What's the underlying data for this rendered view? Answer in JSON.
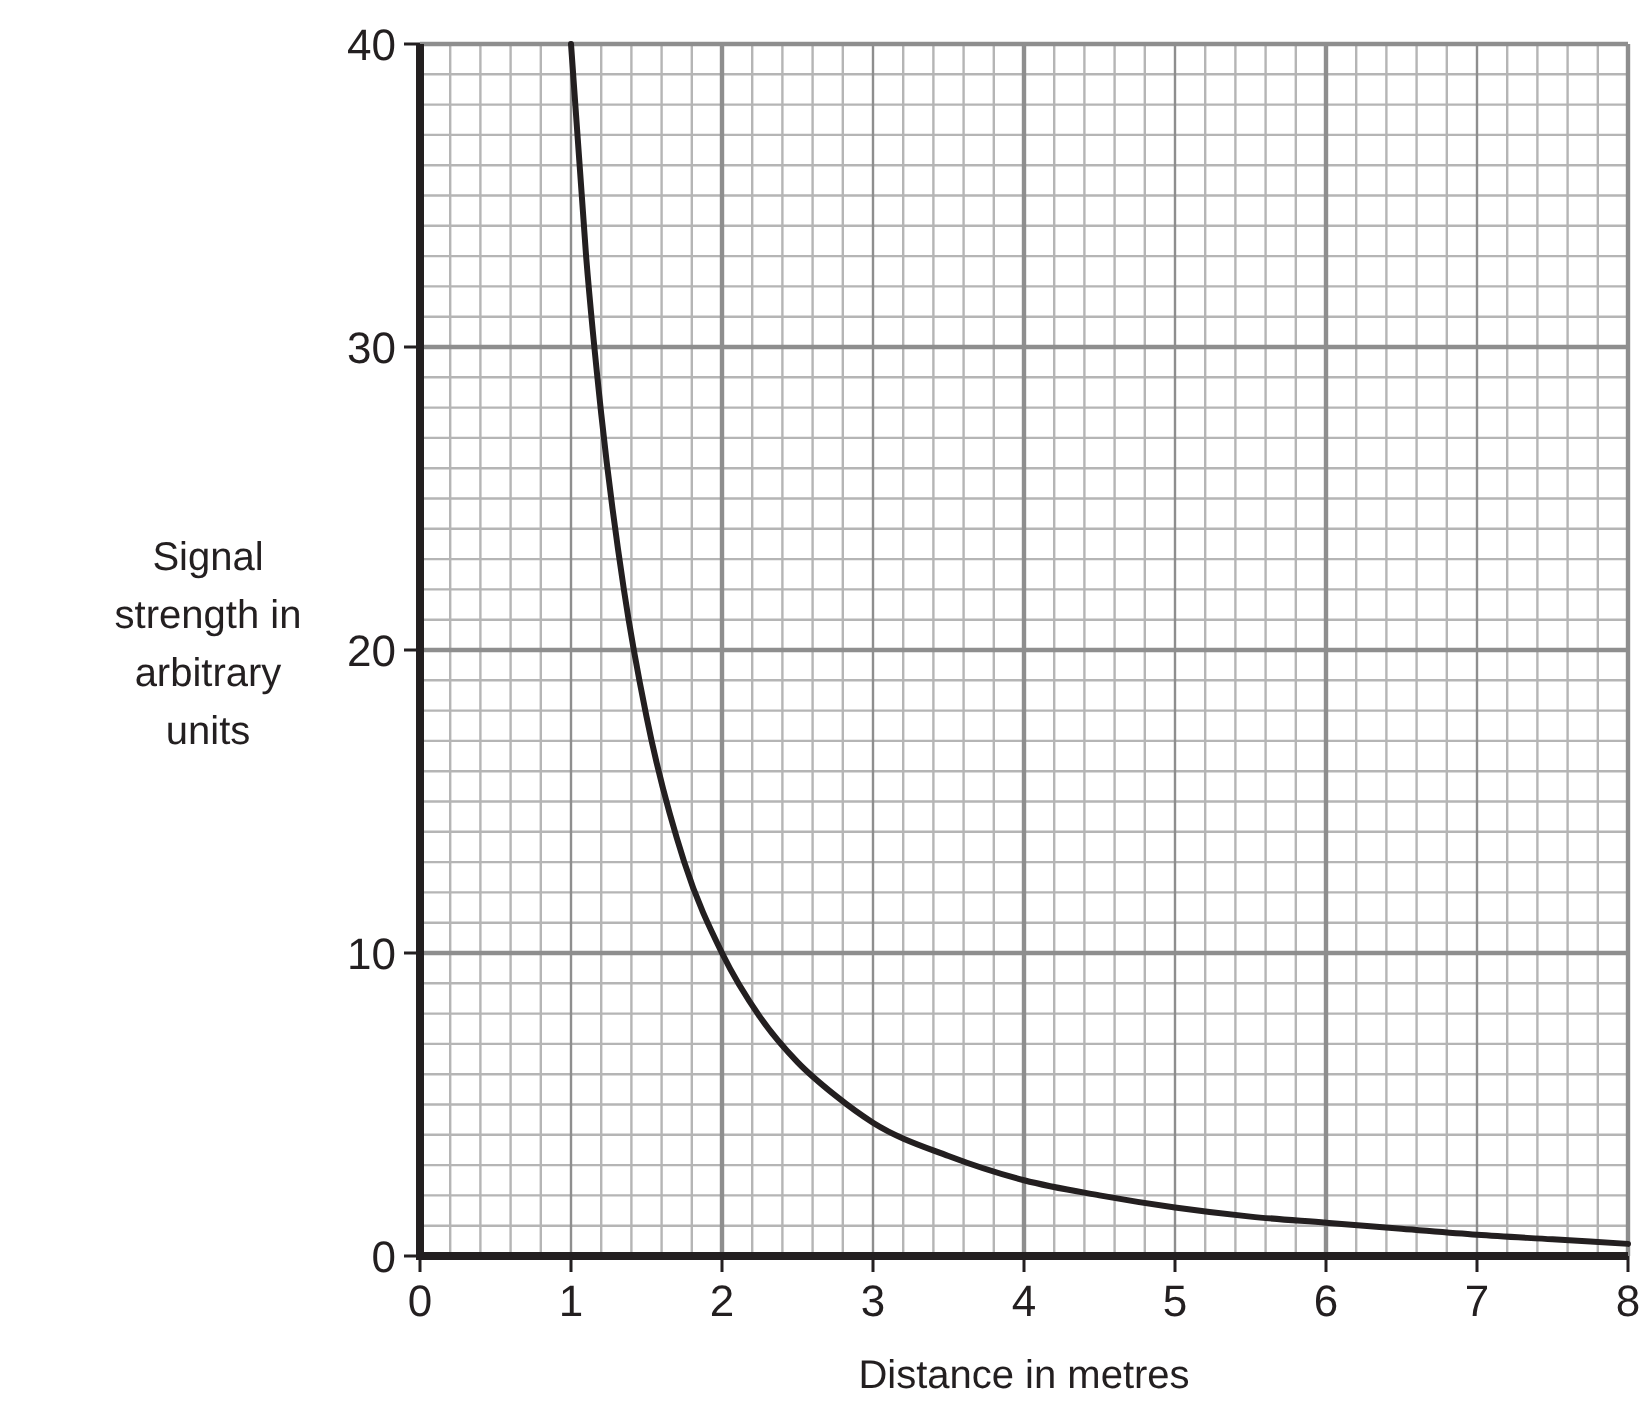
{
  "chart_data": {
    "type": "line",
    "xlabel": "Distance in metres",
    "ylabel": "Signal\nstrength in\narbitrary\nunits",
    "x": [
      1,
      1.1,
      1.2,
      1.35,
      1.5,
      1.75,
      2,
      2.25,
      2.5,
      2.75,
      3,
      3.5,
      4,
      4.5,
      5,
      5.5,
      6,
      6.5,
      7,
      7.5,
      8
    ],
    "series": [
      {
        "color": "#231f20",
        "values": [
          40,
          33,
          27.8,
          22,
          17.8,
          13,
          10,
          7.9,
          6.4,
          5.3,
          4.4,
          3.3,
          2.5,
          2,
          1.6,
          1.3,
          1.1,
          0.9,
          0.7,
          0.55,
          0.4
        ]
      }
    ],
    "xlim": [
      0,
      8
    ],
    "ylim": [
      0,
      40
    ],
    "xticks": [
      0,
      1,
      2,
      3,
      4,
      5,
      6,
      7,
      8
    ],
    "yticks": [
      0,
      10,
      20,
      30,
      40
    ],
    "grid": true,
    "marker": "none",
    "line_style": "solid"
  }
}
